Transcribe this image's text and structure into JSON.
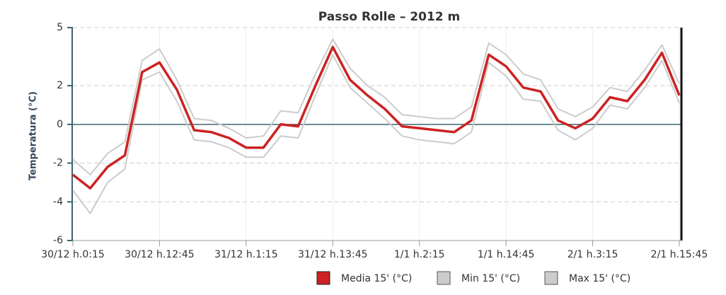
{
  "chart_data": {
    "type": "line",
    "title": "Passo Rolle – 2012 m",
    "y_label": "Temperatura (°C)",
    "categories": [
      "30/12 h.0:15",
      null,
      null,
      null,
      null,
      "30/12 h.12:45",
      null,
      null,
      null,
      null,
      "31/12 h.1:15",
      null,
      null,
      null,
      null,
      "31/12 h.13:45",
      null,
      null,
      null,
      null,
      "1/1 h.2:15",
      null,
      null,
      null,
      null,
      "1/1 h.14:45",
      null,
      null,
      null,
      null,
      "2/1 h.3:15",
      null,
      null,
      null,
      null,
      "2/1 h.15:45"
    ],
    "series": [
      {
        "name": "Min 15' (°C)",
        "color": "#cccccc",
        "values": [
          -3.4,
          -4.6,
          -3.0,
          -2.3,
          2.3,
          2.7,
          1.2,
          -0.8,
          -0.9,
          -1.2,
          -1.7,
          -1.7,
          -0.6,
          -0.7,
          1.5,
          3.6,
          1.9,
          1.1,
          0.3,
          -0.6,
          -0.8,
          -0.9,
          -1.0,
          -0.4,
          3.2,
          2.5,
          1.3,
          1.2,
          -0.3,
          -0.8,
          -0.2,
          1.0,
          0.8,
          1.9,
          3.3,
          1.1
        ]
      },
      {
        "name": "Max 15' (°C)",
        "color": "#cccccc",
        "values": [
          -1.8,
          -2.6,
          -1.5,
          -0.9,
          3.3,
          3.9,
          2.3,
          0.3,
          0.2,
          -0.2,
          -0.7,
          -0.6,
          0.7,
          0.6,
          2.6,
          4.4,
          2.9,
          2.0,
          1.4,
          0.5,
          0.4,
          0.3,
          0.3,
          0.9,
          4.2,
          3.6,
          2.6,
          2.3,
          0.8,
          0.4,
          0.9,
          1.9,
          1.7,
          2.8,
          4.1,
          2.1
        ]
      },
      {
        "name": "Media 15' (°C)",
        "color": "#cc2222",
        "values": [
          -2.6,
          -3.3,
          -2.2,
          -1.6,
          2.7,
          3.2,
          1.8,
          -0.3,
          -0.4,
          -0.7,
          -1.2,
          -1.2,
          0.0,
          -0.1,
          2.0,
          4.0,
          2.3,
          1.5,
          0.8,
          -0.1,
          -0.2,
          -0.3,
          -0.4,
          0.2,
          3.6,
          3.0,
          1.9,
          1.7,
          0.2,
          -0.2,
          0.3,
          1.4,
          1.2,
          2.3,
          3.7,
          1.5
        ]
      }
    ],
    "ylim": [
      -6,
      5
    ],
    "yticks": [
      -6,
      -4,
      -2,
      0,
      2,
      5
    ],
    "grid": true
  }
}
